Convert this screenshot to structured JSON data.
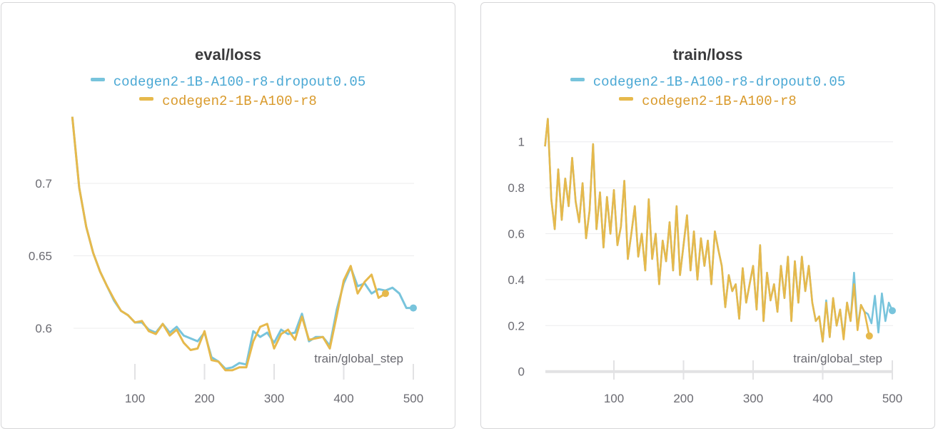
{
  "colors": {
    "series1_line": "#78c4dc",
    "series2_line": "#e6b94c",
    "series1_text": "#4aa8d4",
    "series2_text": "#d99a2b"
  },
  "chart_data": [
    {
      "type": "line",
      "title": "eval/loss",
      "xlabel": "train/global_step",
      "ylabel": "",
      "xlim": [
        0,
        500
      ],
      "ylim": [
        0.5675,
        0.748
      ],
      "x_ticks": [
        100,
        200,
        300,
        400,
        500
      ],
      "y_ticks": [
        0.6,
        0.65,
        0.7
      ],
      "grid": true,
      "legend_position": "top-center",
      "series": [
        {
          "name": "codegen2-1B-A100-r8-dropout0.05",
          "x": [
            10,
            20,
            30,
            40,
            50,
            60,
            70,
            80,
            90,
            100,
            110,
            120,
            130,
            140,
            150,
            160,
            170,
            180,
            190,
            200,
            210,
            220,
            230,
            240,
            250,
            260,
            270,
            280,
            290,
            300,
            310,
            320,
            330,
            340,
            350,
            360,
            370,
            380,
            390,
            400,
            410,
            420,
            430,
            440,
            450,
            460,
            470,
            480,
            490,
            500
          ],
          "values": [
            0.746,
            0.697,
            0.67,
            0.652,
            0.639,
            0.629,
            0.619,
            0.612,
            0.609,
            0.604,
            0.604,
            0.599,
            0.597,
            0.603,
            0.597,
            0.601,
            0.595,
            0.593,
            0.591,
            0.597,
            0.58,
            0.577,
            0.572,
            0.573,
            0.576,
            0.575,
            0.598,
            0.594,
            0.597,
            0.59,
            0.599,
            0.596,
            0.597,
            0.61,
            0.591,
            0.594,
            0.594,
            0.588,
            0.613,
            0.631,
            0.642,
            0.629,
            0.631,
            0.624,
            0.627,
            0.626,
            0.628,
            0.624,
            0.614,
            0.614
          ]
        },
        {
          "name": "codegen2-1B-A100-r8",
          "x": [
            10,
            20,
            30,
            40,
            50,
            60,
            70,
            80,
            90,
            100,
            110,
            120,
            130,
            140,
            150,
            160,
            170,
            180,
            190,
            200,
            210,
            220,
            230,
            240,
            250,
            260,
            270,
            280,
            290,
            300,
            310,
            320,
            330,
            340,
            350,
            360,
            370,
            380,
            390,
            400,
            410,
            420,
            430,
            440,
            450,
            460
          ],
          "values": [
            0.746,
            0.697,
            0.67,
            0.652,
            0.639,
            0.629,
            0.62,
            0.612,
            0.609,
            0.604,
            0.605,
            0.598,
            0.596,
            0.603,
            0.595,
            0.599,
            0.59,
            0.585,
            0.586,
            0.598,
            0.578,
            0.577,
            0.571,
            0.571,
            0.573,
            0.573,
            0.591,
            0.601,
            0.603,
            0.586,
            0.596,
            0.599,
            0.592,
            0.608,
            0.592,
            0.593,
            0.594,
            0.586,
            0.609,
            0.633,
            0.643,
            0.624,
            0.632,
            0.637,
            0.621,
            0.624
          ]
        }
      ]
    },
    {
      "type": "line",
      "title": "train/loss",
      "xlabel": "train/global_step",
      "ylabel": "",
      "xlim": [
        0,
        500
      ],
      "ylim": [
        0,
        1.12
      ],
      "x_ticks": [
        100,
        200,
        300,
        400,
        500
      ],
      "y_ticks": [
        0,
        0.2,
        0.4,
        0.6,
        0.8,
        1
      ],
      "y_tick_labels": [
        "0",
        "0.2",
        "0.4",
        "0.6",
        "0.8",
        "1"
      ],
      "grid": true,
      "legend_position": "top-center",
      "series": [
        {
          "name": "codegen2-1B-A100-r8-dropout0.05",
          "x": [
            1,
            5,
            10,
            15,
            20,
            25,
            30,
            35,
            40,
            45,
            50,
            55,
            60,
            65,
            70,
            75,
            80,
            85,
            90,
            95,
            100,
            105,
            110,
            115,
            120,
            125,
            130,
            135,
            140,
            145,
            150,
            155,
            160,
            165,
            170,
            175,
            180,
            185,
            190,
            195,
            200,
            205,
            210,
            215,
            220,
            225,
            230,
            235,
            240,
            245,
            250,
            255,
            260,
            265,
            270,
            275,
            280,
            285,
            290,
            295,
            300,
            305,
            310,
            315,
            320,
            325,
            330,
            335,
            340,
            345,
            350,
            355,
            360,
            365,
            370,
            375,
            380,
            385,
            390,
            395,
            400,
            405,
            410,
            415,
            420,
            425,
            430,
            435,
            440,
            445,
            450,
            455,
            460,
            465,
            470,
            475,
            480,
            485,
            490,
            495,
            500
          ],
          "values": [
            0.98,
            1.1,
            0.75,
            0.62,
            0.88,
            0.66,
            0.84,
            0.72,
            0.93,
            0.74,
            0.65,
            0.82,
            0.58,
            0.7,
            0.99,
            0.62,
            0.78,
            0.54,
            0.76,
            0.6,
            0.79,
            0.55,
            0.63,
            0.83,
            0.49,
            0.6,
            0.72,
            0.5,
            0.6,
            0.44,
            0.75,
            0.49,
            0.6,
            0.38,
            0.57,
            0.48,
            0.65,
            0.44,
            0.72,
            0.42,
            0.55,
            0.68,
            0.44,
            0.61,
            0.4,
            0.58,
            0.46,
            0.57,
            0.38,
            0.61,
            0.53,
            0.46,
            0.28,
            0.42,
            0.35,
            0.38,
            0.23,
            0.45,
            0.3,
            0.38,
            0.46,
            0.27,
            0.55,
            0.22,
            0.43,
            0.31,
            0.38,
            0.26,
            0.46,
            0.32,
            0.5,
            0.22,
            0.48,
            0.3,
            0.5,
            0.35,
            0.46,
            0.3,
            0.22,
            0.24,
            0.13,
            0.31,
            0.15,
            0.32,
            0.2,
            0.27,
            0.15,
            0.3,
            0.22,
            0.43,
            0.19,
            0.29,
            0.26,
            0.25,
            0.21,
            0.33,
            0.17,
            0.34,
            0.22,
            0.3,
            0.265
          ]
        },
        {
          "name": "codegen2-1B-A100-r8",
          "x": [
            1,
            5,
            10,
            15,
            20,
            25,
            30,
            35,
            40,
            45,
            50,
            55,
            60,
            65,
            70,
            75,
            80,
            85,
            90,
            95,
            100,
            105,
            110,
            115,
            120,
            125,
            130,
            135,
            140,
            145,
            150,
            155,
            160,
            165,
            170,
            175,
            180,
            185,
            190,
            195,
            200,
            205,
            210,
            215,
            220,
            225,
            230,
            235,
            240,
            245,
            250,
            255,
            260,
            265,
            270,
            275,
            280,
            285,
            290,
            295,
            300,
            305,
            310,
            315,
            320,
            325,
            330,
            335,
            340,
            345,
            350,
            355,
            360,
            365,
            370,
            375,
            380,
            385,
            390,
            395,
            400,
            405,
            410,
            415,
            420,
            425,
            430,
            435,
            440,
            445,
            450,
            455,
            460,
            467
          ],
          "values": [
            0.98,
            1.1,
            0.75,
            0.62,
            0.88,
            0.66,
            0.84,
            0.72,
            0.93,
            0.74,
            0.65,
            0.82,
            0.58,
            0.7,
            0.99,
            0.62,
            0.78,
            0.54,
            0.76,
            0.6,
            0.79,
            0.55,
            0.63,
            0.83,
            0.49,
            0.6,
            0.72,
            0.5,
            0.6,
            0.44,
            0.75,
            0.49,
            0.6,
            0.38,
            0.57,
            0.48,
            0.65,
            0.44,
            0.72,
            0.42,
            0.55,
            0.68,
            0.44,
            0.61,
            0.4,
            0.58,
            0.46,
            0.57,
            0.38,
            0.61,
            0.53,
            0.46,
            0.28,
            0.42,
            0.35,
            0.38,
            0.23,
            0.45,
            0.3,
            0.38,
            0.46,
            0.27,
            0.55,
            0.22,
            0.43,
            0.31,
            0.38,
            0.26,
            0.46,
            0.32,
            0.5,
            0.22,
            0.48,
            0.3,
            0.5,
            0.35,
            0.46,
            0.3,
            0.22,
            0.24,
            0.13,
            0.3,
            0.15,
            0.32,
            0.2,
            0.27,
            0.14,
            0.3,
            0.22,
            0.38,
            0.18,
            0.29,
            0.26,
            0.155
          ]
        }
      ]
    }
  ]
}
